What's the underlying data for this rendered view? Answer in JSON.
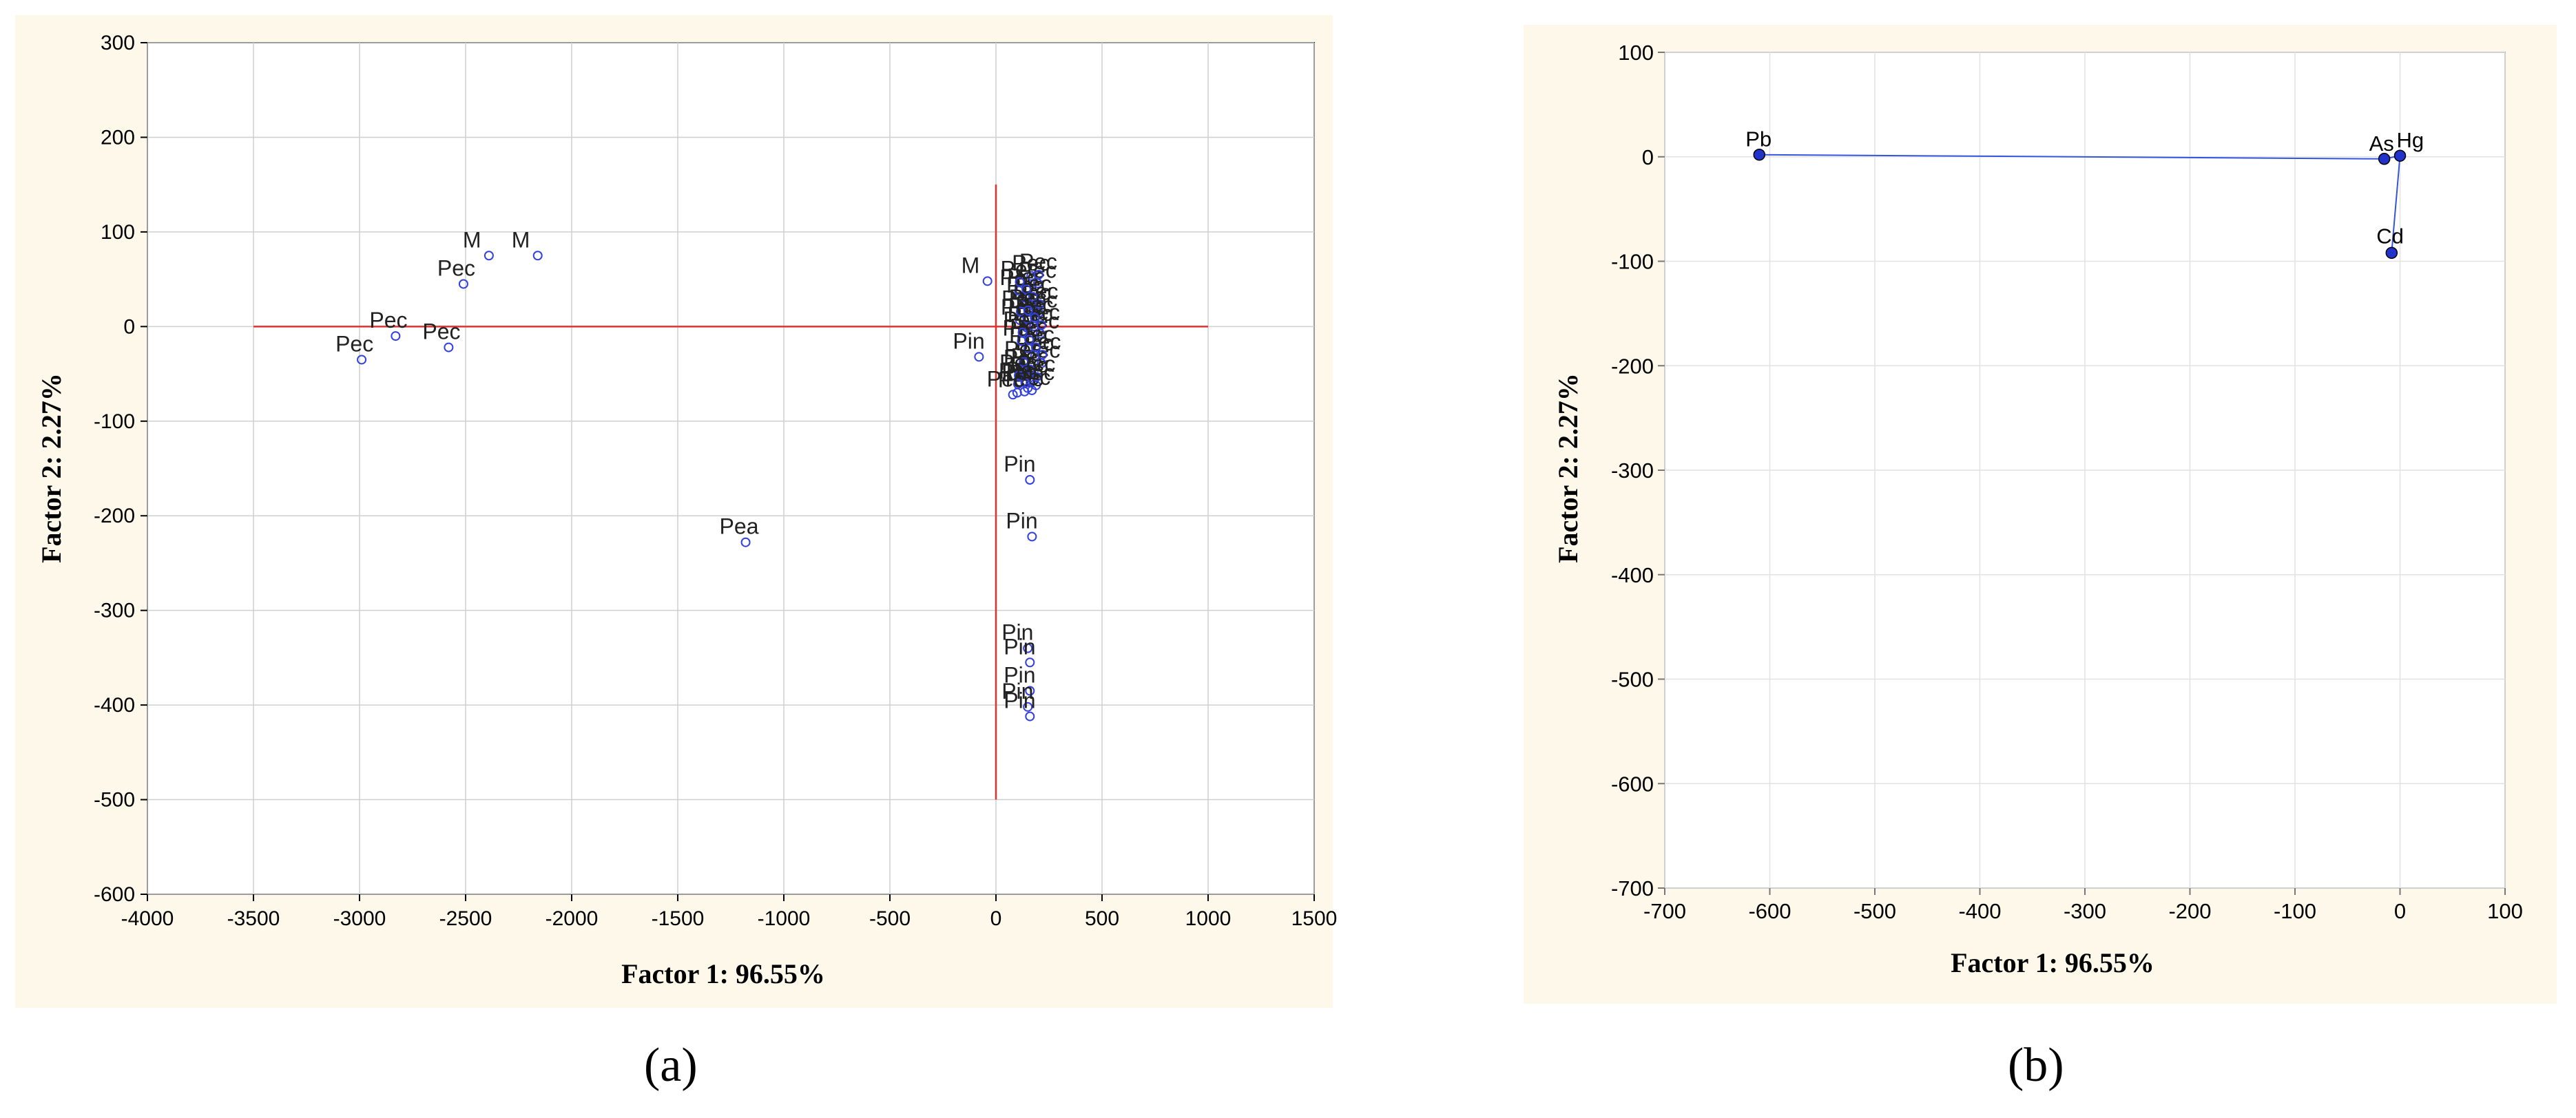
{
  "captions": {
    "a": "(a)",
    "b": "(b)"
  },
  "chart_data": [
    {
      "type": "scatter",
      "panel": "a",
      "xlabel": "Factor 1: 96.55%",
      "ylabel": "Factor 2:  2.27%",
      "xlim": [
        -4000,
        1500
      ],
      "ylim": [
        -600,
        300
      ],
      "xticks": [
        -4000,
        -3500,
        -3000,
        -2500,
        -2000,
        -1500,
        -1000,
        -500,
        0,
        500,
        1000,
        1500
      ],
      "yticks": [
        -600,
        -500,
        -400,
        -300,
        -200,
        -100,
        0,
        100,
        200,
        300
      ],
      "grid": true,
      "reference_lines": {
        "horizontal": {
          "y": 0,
          "x_from": -3500,
          "x_to": 1000
        },
        "vertical": {
          "x": 0,
          "y_from": -500,
          "y_to": 150
        },
        "color": "#e03030"
      },
      "points": [
        {
          "label": "M",
          "x": -2390,
          "y": 75
        },
        {
          "label": "M",
          "x": -2160,
          "y": 75
        },
        {
          "label": "Pec",
          "x": -2510,
          "y": 45
        },
        {
          "label": "Pec",
          "x": -2830,
          "y": -10
        },
        {
          "label": "Pec",
          "x": -2580,
          "y": -22
        },
        {
          "label": "Pec",
          "x": -2990,
          "y": -35
        },
        {
          "label": "Pea",
          "x": -1180,
          "y": -228
        },
        {
          "label": "M",
          "x": -40,
          "y": 48
        },
        {
          "label": "Pin",
          "x": -80,
          "y": -32
        },
        {
          "label": "Pec",
          "x": 80,
          "y": -72
        },
        {
          "label": "Pec",
          "x": 150,
          "y": -65
        },
        {
          "label": "Pin",
          "x": 160,
          "y": -162
        },
        {
          "label": "Pin",
          "x": 170,
          "y": -222
        },
        {
          "label": "Pin",
          "x": 150,
          "y": -340
        },
        {
          "label": "Pin",
          "x": 160,
          "y": -355
        },
        {
          "label": "Pin",
          "x": 160,
          "y": -385
        },
        {
          "label": "Pin",
          "x": 150,
          "y": -402
        },
        {
          "label": "Pin",
          "x": 160,
          "y": -412
        }
      ],
      "cluster": {
        "x_range": [
          100,
          220
        ],
        "y_range": [
          -70,
          60
        ],
        "label": "Pec"
      }
    },
    {
      "type": "line",
      "panel": "b",
      "xlabel": "Factor 1: 96.55%",
      "ylabel": "Factor 2:  2.27%",
      "xlim": [
        -700,
        100
      ],
      "ylim": [
        -700,
        100
      ],
      "xticks": [
        -700,
        -600,
        -500,
        -400,
        -300,
        -200,
        -100,
        0,
        100
      ],
      "yticks": [
        -700,
        -600,
        -500,
        -400,
        -300,
        -200,
        -100,
        0,
        100
      ],
      "grid": true,
      "line_color": "#3355dd",
      "points": [
        {
          "label": "Pb",
          "x": -610,
          "y": 2
        },
        {
          "label": "As",
          "x": -15,
          "y": -2
        },
        {
          "label": "Hg",
          "x": 0,
          "y": 1
        },
        {
          "label": "Cd",
          "x": -8,
          "y": -92
        }
      ]
    }
  ]
}
